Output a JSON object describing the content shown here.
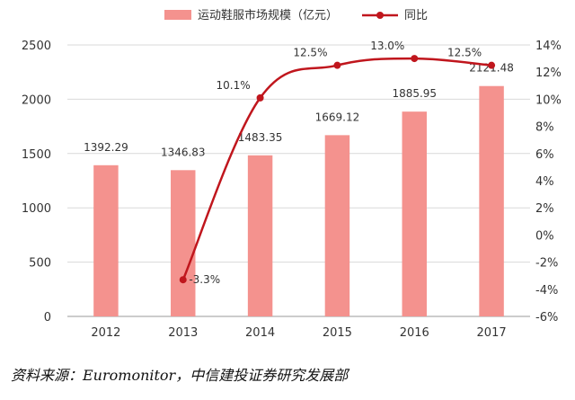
{
  "chart_data": {
    "type": "bar+line",
    "categories": [
      "2012",
      "2013",
      "2014",
      "2015",
      "2016",
      "2017"
    ],
    "series": [
      {
        "name": "运动鞋服市场规模（亿元）",
        "type": "bar",
        "axis": "left",
        "values": [
          1392.29,
          1346.83,
          1483.35,
          1669.12,
          1885.95,
          2121.48
        ],
        "labels": [
          "1392.29",
          "1346.83",
          "1483.35",
          "1669.12",
          "1885.95",
          "2121.48"
        ],
        "color": "#f4928e"
      },
      {
        "name": "同比",
        "type": "line",
        "axis": "right",
        "values": [
          null,
          -3.3,
          10.1,
          12.5,
          13.0,
          12.5
        ],
        "labels": [
          "",
          "-3.3%",
          "10.1%",
          "12.5%",
          "13.0%",
          "12.5%"
        ],
        "color": "#c0161d"
      }
    ],
    "y_left": {
      "min": 0,
      "max": 2500,
      "ticks": [
        "0",
        "500",
        "1000",
        "1500",
        "2000",
        "2500"
      ]
    },
    "y_right": {
      "min": -6,
      "max": 14,
      "ticks": [
        "-6%",
        "-4%",
        "-2%",
        "0%",
        "2%",
        "4%",
        "6%",
        "8%",
        "10%",
        "12%",
        "14%"
      ]
    },
    "grid": true,
    "legend": "top-center"
  },
  "source_note": "资料来源：Euromonitor，中信建投证券研究发展部"
}
